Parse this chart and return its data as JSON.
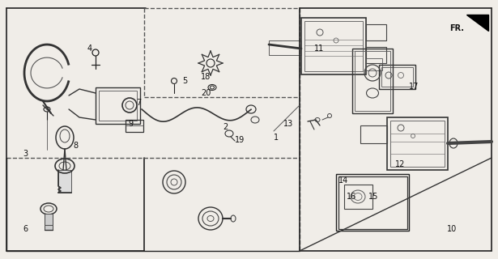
{
  "bg_color": "#f0ede8",
  "fig_width": 6.15,
  "fig_height": 3.2,
  "dpi": 100,
  "image_b64": ""
}
